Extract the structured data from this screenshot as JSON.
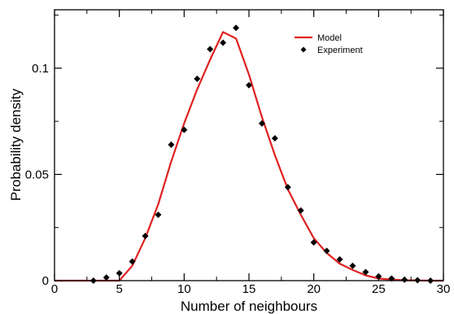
{
  "chart_data": {
    "type": "scatter",
    "xlabel": "Number of neighbours",
    "ylabel": "Probability density",
    "xlim": [
      0,
      30
    ],
    "ylim": [
      0,
      0.1275
    ],
    "xticks": [
      0,
      5,
      10,
      15,
      20,
      25,
      30
    ],
    "xtick_labels": [
      "0",
      "5",
      "10",
      "15",
      "20",
      "25",
      "30"
    ],
    "yticks": [
      0,
      0.05,
      0.1
    ],
    "ytick_labels": [
      "0",
      "0.05",
      "0.1"
    ],
    "grid": false,
    "legend_position": "top-right",
    "series": [
      {
        "name": "Model",
        "kind": "line",
        "color": "#e02020",
        "x": [
          0,
          5,
          6,
          7,
          8,
          9,
          10,
          11,
          12,
          13,
          14,
          15,
          16,
          17,
          18,
          19,
          20,
          21,
          22,
          23,
          24,
          25,
          26,
          27,
          28,
          29,
          30
        ],
        "y": [
          0,
          0,
          0.007,
          0.02,
          0.036,
          0.056,
          0.074,
          0.09,
          0.104,
          0.117,
          0.114,
          0.097,
          0.077,
          0.059,
          0.043,
          0.031,
          0.02,
          0.013,
          0.008,
          0.005,
          0.0025,
          0.001,
          0.0005,
          0.0002,
          0.0001,
          0,
          0
        ]
      },
      {
        "name": "Experiment",
        "kind": "scatter",
        "color": "#000000",
        "x": [
          3,
          4,
          5,
          6,
          7,
          8,
          9,
          10,
          11,
          12,
          13,
          14,
          15,
          16,
          17,
          18,
          19,
          20,
          21,
          22,
          23,
          24,
          25,
          26,
          27,
          28,
          29
        ],
        "y": [
          0,
          0.0015,
          0.0035,
          0.009,
          0.021,
          0.031,
          0.064,
          0.071,
          0.095,
          0.109,
          0.112,
          0.119,
          0.092,
          0.074,
          0.067,
          0.044,
          0.033,
          0.018,
          0.014,
          0.01,
          0.007,
          0.004,
          0.002,
          0.001,
          0.0005,
          0.0002,
          0
        ]
      }
    ]
  }
}
